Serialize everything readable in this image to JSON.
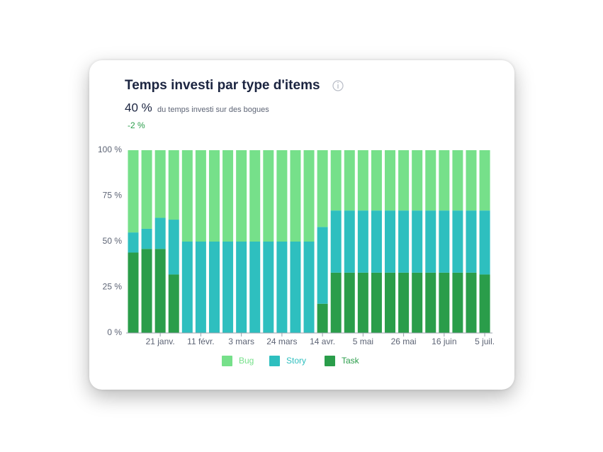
{
  "chart_data": {
    "type": "stacked-bar",
    "title": "Temps investi par type d'items",
    "kpi": "40 %",
    "kpi_caption": "du temps investi sur des bogues",
    "change": "-2 %",
    "categories": [
      null,
      null,
      "21 janv.",
      null,
      null,
      "11 févr.",
      null,
      null,
      "3 mars",
      null,
      null,
      "24 mars",
      null,
      null,
      "14 avr.",
      null,
      null,
      "5 mai",
      null,
      null,
      "26 mai",
      null,
      null,
      "16 juin",
      null,
      null,
      "5 juil."
    ],
    "series": [
      {
        "name": "Bug",
        "color": "#76e08a",
        "values": [
          45,
          43,
          37,
          38,
          50,
          50,
          50,
          50,
          50,
          50,
          50,
          50,
          50,
          50,
          42,
          33,
          33,
          33,
          33,
          33,
          33,
          33,
          33,
          33,
          33,
          33,
          33
        ]
      },
      {
        "name": "Story",
        "color": "#2ebfbf",
        "values": [
          11,
          11,
          17,
          30,
          50,
          50,
          50,
          50,
          50,
          50,
          50,
          50,
          50,
          50,
          42,
          34,
          34,
          34,
          34,
          34,
          34,
          34,
          34,
          34,
          34,
          34,
          35
        ]
      },
      {
        "name": "Task",
        "color": "#2a9d4a",
        "values": [
          44,
          46,
          46,
          32,
          0,
          0,
          0,
          0,
          0,
          0,
          0,
          0,
          0,
          0,
          16,
          33,
          33,
          33,
          33,
          33,
          33,
          33,
          33,
          33,
          33,
          33,
          32
        ]
      }
    ],
    "ylim": [
      0,
      100
    ],
    "yticks": [
      {
        "value": 0,
        "label": "0 %"
      },
      {
        "value": 25,
        "label": "25 %"
      },
      {
        "value": 50,
        "label": "50 %"
      },
      {
        "value": 75,
        "label": "75 %"
      },
      {
        "value": 100,
        "label": "100 %"
      }
    ]
  }
}
